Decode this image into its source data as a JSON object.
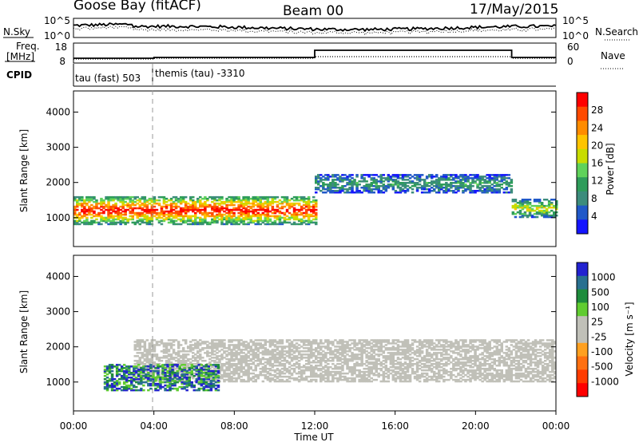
{
  "header": {
    "station": "Goose Bay (fitACF)",
    "beam": "Beam 00",
    "date": "17/May/2015"
  },
  "noise_panel": {
    "left_label": "N.Sky",
    "right_label": "N.Search",
    "left_ticks": [
      "10^5",
      "10^0"
    ],
    "right_ticks": [
      "10^5",
      "10^0"
    ]
  },
  "freq_panel": {
    "left_label_1": "Freq.",
    "left_label_2": "[MHz]",
    "left_ticks": [
      "18",
      "8"
    ],
    "right_label": "Nave",
    "right_ticks": [
      "60",
      "0"
    ]
  },
  "cpid": {
    "label": "CPID",
    "segments": [
      {
        "name": "tau (fast) 503",
        "start_hour": 0,
        "end_hour": 4.0
      },
      {
        "name": "themis (tau) -3310",
        "start_hour": 4.0,
        "end_hour": 24
      }
    ]
  },
  "time_axis": {
    "label": "Time UT",
    "ticks": [
      "00:00",
      "04:00",
      "08:00",
      "12:00",
      "16:00",
      "20:00",
      "00:00"
    ]
  },
  "chart_data": [
    {
      "type": "heatmap",
      "name": "power",
      "xlabel": "Time UT",
      "ylabel": "Slant Range [km]",
      "xlim_hours": [
        0,
        24
      ],
      "ylim_km": [
        180,
        4600
      ],
      "yticks": [
        "4000",
        "3000",
        "2000",
        "1000"
      ],
      "colorbar": {
        "label": "Power [dB]",
        "ticks": [
          "28",
          "24",
          "20",
          "16",
          "12",
          "8",
          "4"
        ],
        "colors": [
          "#ff0000",
          "#ff4a00",
          "#ff8c00",
          "#ffc400",
          "#c8dc00",
          "#5fd25a",
          "#2e9c5a",
          "#3c8c7c",
          "#2058c8",
          "#1414ff"
        ]
      },
      "features": [
        {
          "label": "strong echo band",
          "start_hour": 0.0,
          "end_hour": 12.0,
          "range_km": [
            800,
            1600
          ],
          "peak_db": 28
        },
        {
          "label": "F-region band",
          "start_hour": 12.0,
          "end_hour": 21.8,
          "range_km": [
            1700,
            2200
          ],
          "peak_db": 8
        },
        {
          "label": "late band",
          "start_hour": 21.8,
          "end_hour": 24.0,
          "range_km": [
            1000,
            1500
          ],
          "peak_db": 16
        }
      ]
    },
    {
      "type": "heatmap",
      "name": "velocity",
      "xlabel": "Time UT",
      "ylabel": "Slant Range [km]",
      "xlim_hours": [
        0,
        24
      ],
      "ylim_km": [
        180,
        4600
      ],
      "yticks": [
        "4000",
        "3000",
        "2000",
        "1000"
      ],
      "colorbar": {
        "label": "Velocity [m s⁻¹]",
        "ticks": [
          "1000",
          "500",
          "100",
          "25",
          "-25",
          "-100",
          "-500",
          "-1000"
        ],
        "colors": [
          "#2222d0",
          "#287090",
          "#1e8c3c",
          "#60cc30",
          "#c0c0b8",
          "#c0c0b8",
          "#ffa020",
          "#ff7010",
          "#ff3c00",
          "#ff0000"
        ]
      },
      "features": [
        {
          "label": "ground scatter",
          "start_hour": 3.0,
          "end_hour": 24.0,
          "range_km": [
            1000,
            2200
          ],
          "velocity": 0
        },
        {
          "label": "positive velocity band",
          "start_hour": 1.5,
          "end_hour": 7.2,
          "range_km": [
            750,
            1500
          ],
          "velocity": 200
        }
      ]
    }
  ]
}
